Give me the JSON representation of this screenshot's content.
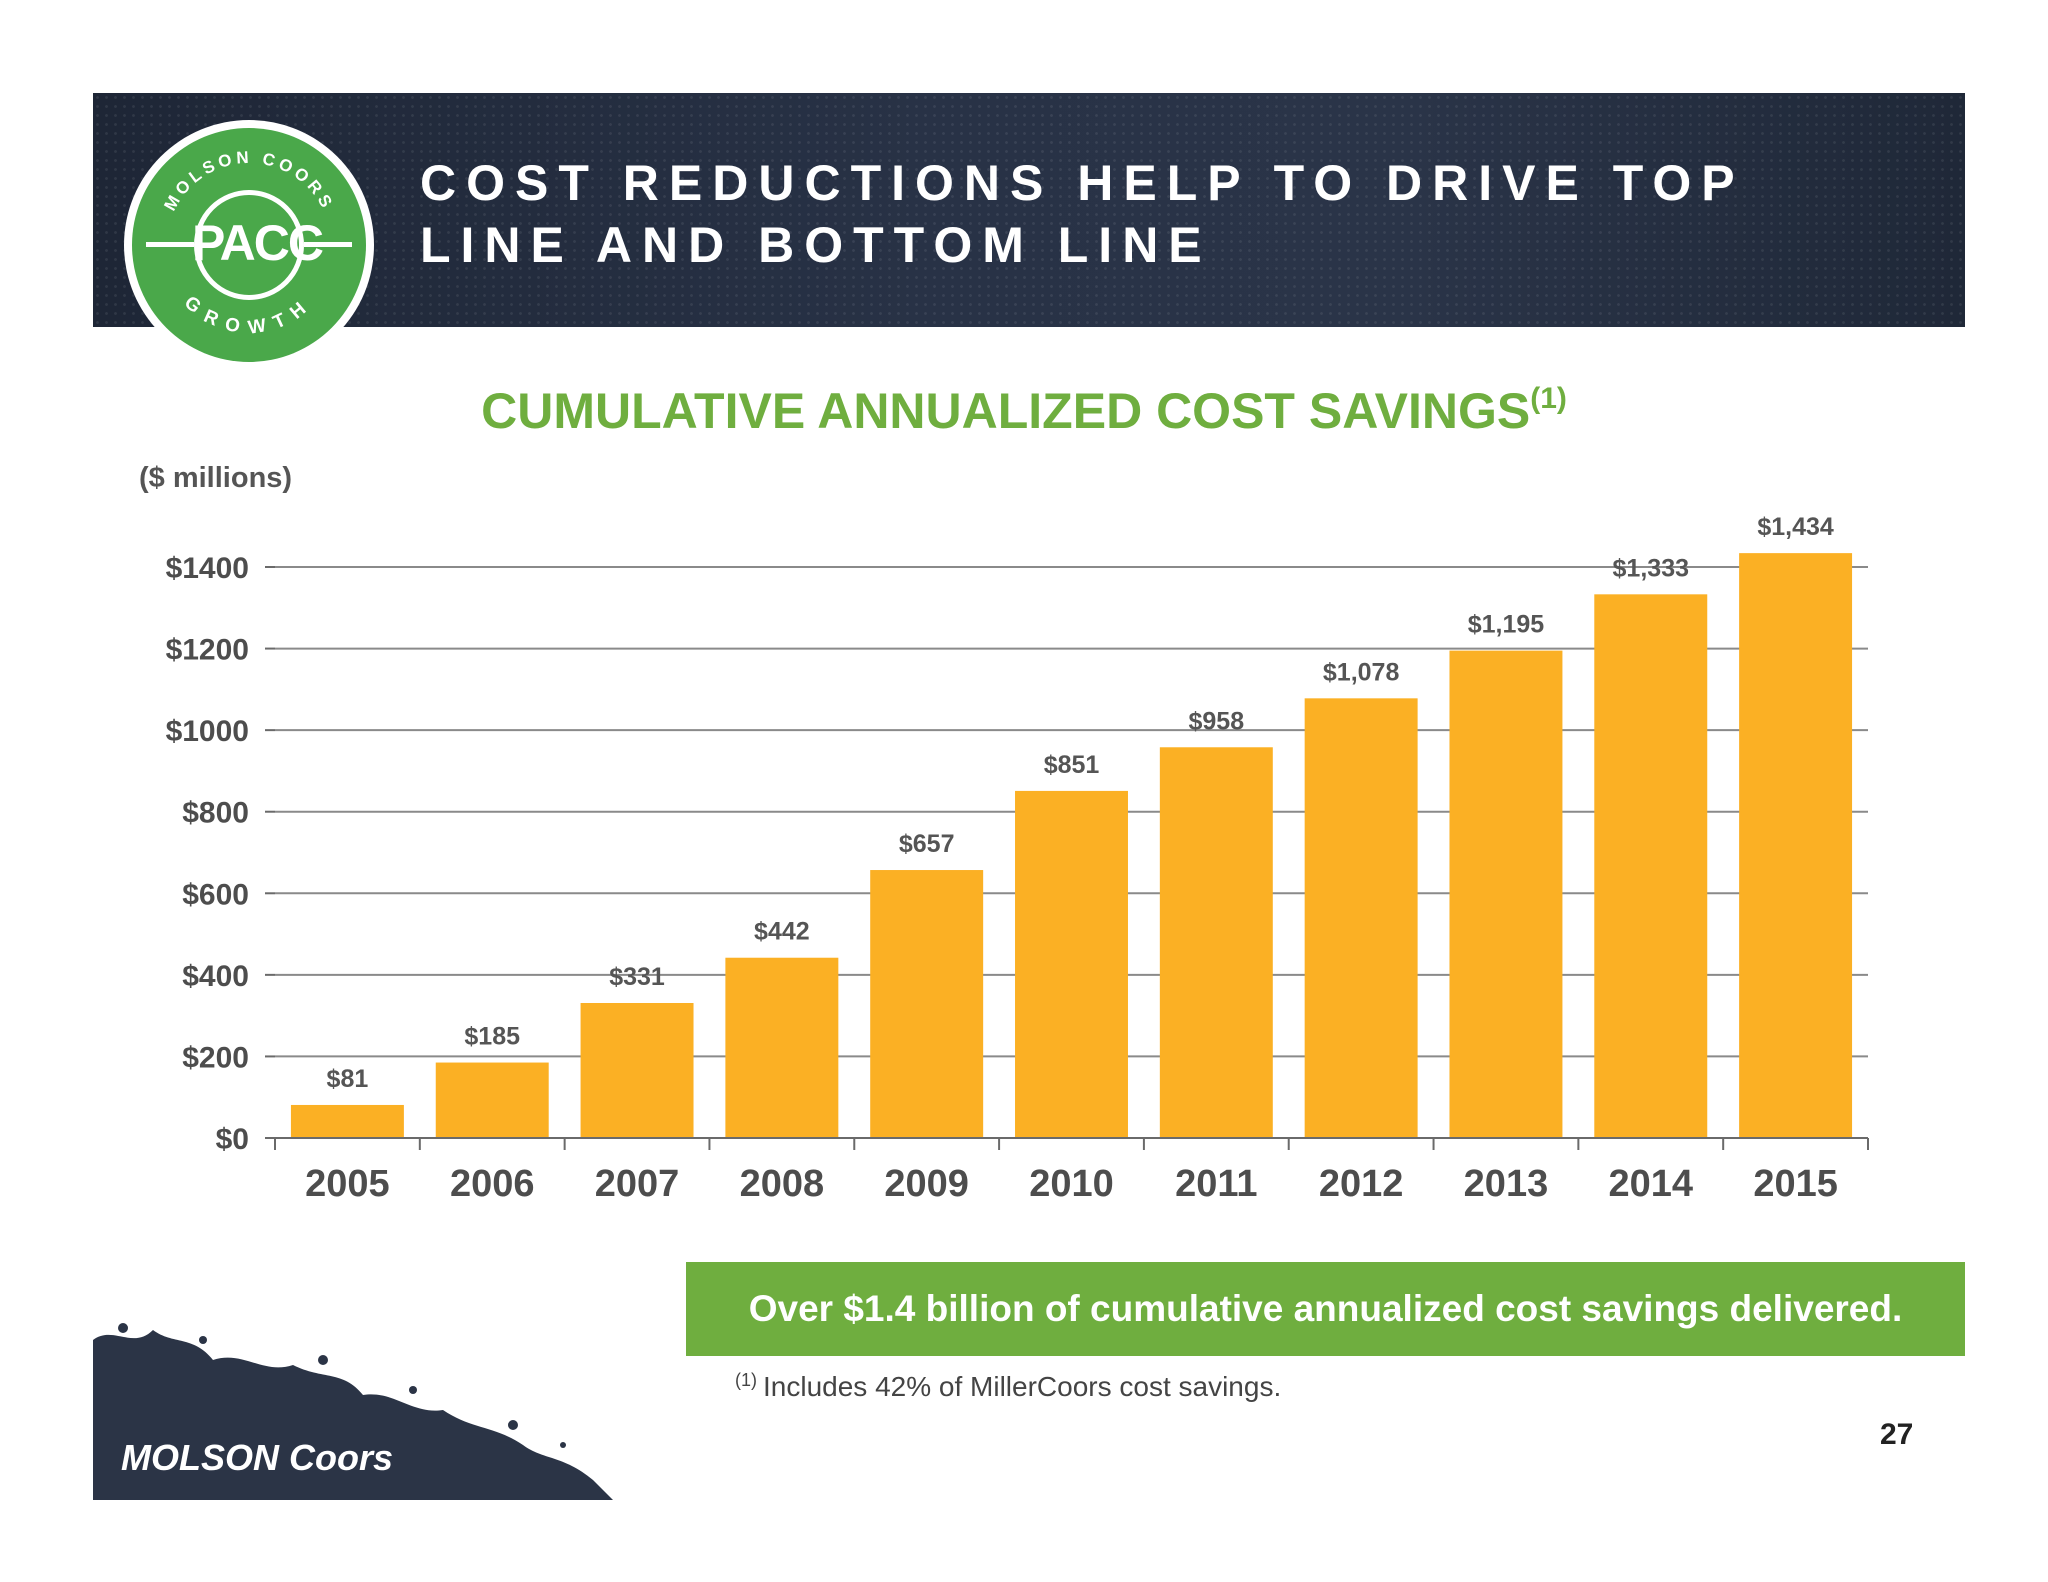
{
  "banner": {
    "title_line1": "COST REDUCTIONS HELP TO DRIVE TOP",
    "title_line2": "LINE AND BOTTOM LINE"
  },
  "badge": {
    "top_text": "MOLSON COORS",
    "center_text": "PACC",
    "bottom_text": "GROWTH"
  },
  "chart_data": {
    "type": "bar",
    "title": "CUMULATIVE ANNUALIZED COST SAVINGS",
    "title_superscript": "(1)",
    "units_label": "($ millions)",
    "categories": [
      "2005",
      "2006",
      "2007",
      "2008",
      "2009",
      "2010",
      "2011",
      "2012",
      "2013",
      "2014",
      "2015"
    ],
    "values": [
      81,
      185,
      331,
      442,
      657,
      851,
      958,
      1078,
      1195,
      1333,
      1434
    ],
    "data_labels": [
      "$81",
      "$185",
      "$331",
      "$442",
      "$657",
      "$851",
      "$958",
      "$1,078",
      "$1,195",
      "$1,333",
      "$1,434"
    ],
    "ylim": [
      0,
      1400
    ],
    "y_ticks": [
      0,
      200,
      400,
      600,
      800,
      1000,
      1200,
      1400
    ],
    "y_tick_labels": [
      "$0",
      "$200",
      "$400",
      "$600",
      "$800",
      "$1000",
      "$1200",
      "$1400"
    ],
    "grid": true,
    "bar_color": "#fbb024"
  },
  "callout": {
    "text": "Over $1.4 billion of cumulative annualized cost savings delivered."
  },
  "footnote": {
    "marker": "(1)",
    "text": "Includes 42% of MillerCoors cost savings."
  },
  "page_number": "27",
  "logo": {
    "text": "MOLSON Coors"
  },
  "colors": {
    "banner": "#232c3e",
    "green": "#6fae3f",
    "badge_green": "#4aa84a",
    "bar": "#fbb024"
  }
}
